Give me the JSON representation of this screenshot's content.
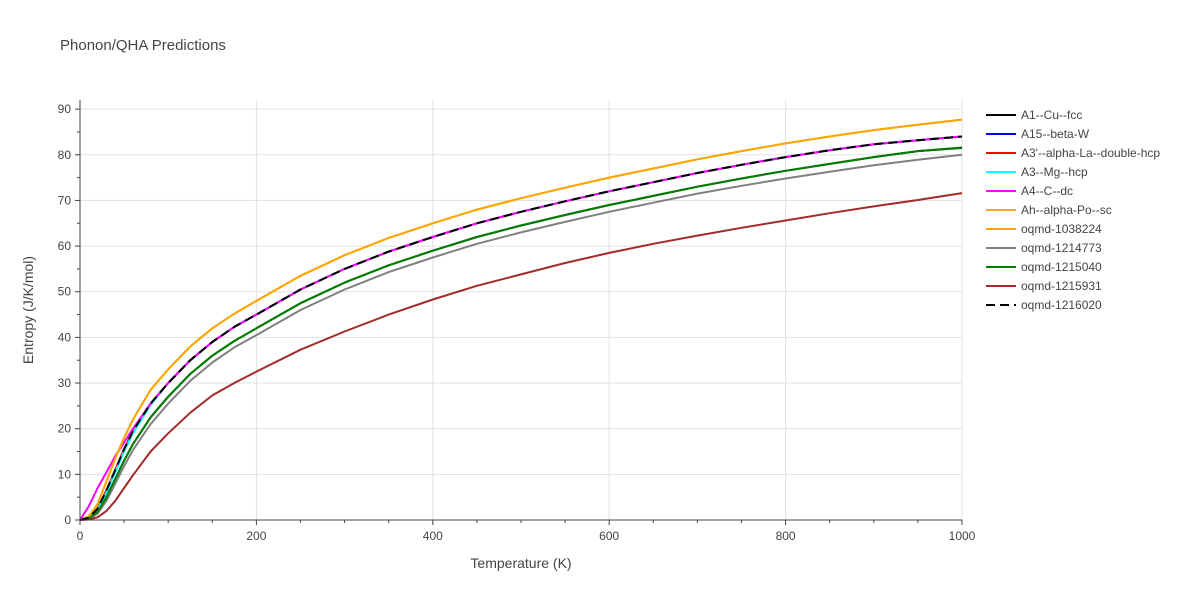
{
  "chart_data": {
    "type": "line",
    "title": "Phonon/QHA Predictions",
    "xlabel": "Temperature (K)",
    "ylabel": "Entropy (J/K/mol)",
    "xlim": [
      0,
      1000
    ],
    "ylim": [
      0,
      92
    ],
    "xticks": [
      0,
      200,
      400,
      600,
      800,
      1000
    ],
    "yticks": [
      0,
      10,
      20,
      30,
      40,
      50,
      60,
      70,
      80,
      90
    ],
    "grid": true,
    "legend_position": "right",
    "x": [
      0,
      10,
      20,
      30,
      40,
      50,
      60,
      80,
      100,
      125,
      150,
      175,
      200,
      250,
      300,
      350,
      400,
      450,
      500,
      550,
      600,
      650,
      700,
      750,
      800,
      850,
      900,
      950,
      1000
    ],
    "series": [
      {
        "name": "A1--Cu--fcc",
        "color": "#000000",
        "dash": "solid",
        "values": [
          0,
          0.3,
          1.8,
          5.0,
          9.0,
          13.0,
          16.6,
          22.5,
          27.0,
          32.0,
          36.0,
          39.2,
          42.0,
          47.5,
          52.0,
          55.8,
          59.0,
          62.0,
          64.5,
          66.8,
          69.0,
          71.0,
          73.0,
          74.8,
          76.5,
          78.0,
          79.5,
          80.8,
          81.5
        ]
      },
      {
        "name": "A15--beta-W",
        "color": "#0000ff",
        "dash": "solid",
        "values": [
          0,
          0.5,
          2.5,
          6.5,
          11.0,
          15.5,
          19.5,
          25.5,
          30.0,
          35.0,
          39.0,
          42.3,
          45.0,
          50.5,
          55.0,
          58.8,
          62.0,
          65.0,
          67.5,
          69.8,
          72.0,
          74.0,
          76.0,
          77.8,
          79.5,
          81.0,
          82.3,
          83.2,
          84.0
        ]
      },
      {
        "name": "A3'--alpha-La--double-hcp",
        "color": "#ff0000",
        "dash": "solid",
        "values": [
          0,
          0.5,
          2.5,
          6.5,
          11.0,
          15.5,
          19.5,
          25.5,
          30.0,
          35.0,
          39.0,
          42.3,
          45.0,
          50.5,
          55.0,
          58.8,
          62.0,
          65.0,
          67.5,
          69.8,
          72.0,
          74.0,
          76.0,
          77.8,
          79.5,
          81.0,
          82.3,
          83.2,
          84.0
        ]
      },
      {
        "name": "A3--Mg--hcp",
        "color": "#00ffff",
        "dash": "solid",
        "values": [
          0,
          0.4,
          2.3,
          6.0,
          10.5,
          15.0,
          19.0,
          25.2,
          30.0,
          35.0,
          39.0,
          42.3,
          45.0,
          50.5,
          55.0,
          58.8,
          62.0,
          65.0,
          67.5,
          69.8,
          72.0,
          74.0,
          76.0,
          77.8,
          79.5,
          81.0,
          82.3,
          83.2,
          84.0
        ]
      },
      {
        "name": "A4--C--dc",
        "color": "#ff00ff",
        "dash": "solid",
        "values": [
          0,
          3.0,
          7.0,
          10.5,
          14.0,
          17.0,
          20.0,
          25.5,
          30.0,
          35.0,
          39.0,
          42.3,
          45.0,
          50.5,
          55.0,
          58.8,
          62.0,
          65.0,
          67.5,
          69.8,
          72.0,
          74.0,
          76.0,
          77.8,
          79.5,
          81.0,
          82.3,
          83.2,
          84.0
        ]
      },
      {
        "name": "Ah--alpha-Po--sc",
        "color": "#f5a623",
        "dash": "solid",
        "values": [
          0,
          0.8,
          3.5,
          8.5,
          13.5,
          18.0,
          22.0,
          28.5,
          33.0,
          38.0,
          42.0,
          45.2,
          48.0,
          53.5,
          58.0,
          61.8,
          65.0,
          68.0,
          70.5,
          72.8,
          75.0,
          77.0,
          79.0,
          80.8,
          82.5,
          84.0,
          85.4,
          86.6,
          87.7
        ]
      },
      {
        "name": "oqmd-1038224",
        "color": "#ffa500",
        "dash": "solid",
        "values": [
          0,
          0.8,
          3.5,
          8.5,
          13.5,
          18.0,
          22.0,
          28.5,
          33.0,
          38.0,
          42.0,
          45.2,
          48.0,
          53.5,
          58.0,
          61.8,
          65.0,
          68.0,
          70.5,
          72.8,
          75.0,
          77.0,
          79.0,
          80.8,
          82.5,
          84.0,
          85.4,
          86.6,
          87.7
        ]
      },
      {
        "name": "oqmd-1214773",
        "color": "#808080",
        "dash": "solid",
        "values": [
          0,
          0.2,
          1.4,
          4.2,
          8.0,
          11.8,
          15.3,
          21.0,
          25.5,
          30.5,
          34.5,
          37.8,
          40.5,
          46.0,
          50.5,
          54.3,
          57.5,
          60.5,
          63.0,
          65.3,
          67.5,
          69.5,
          71.5,
          73.2,
          74.8,
          76.3,
          77.7,
          78.9,
          80.0
        ]
      },
      {
        "name": "oqmd-1215040",
        "color": "#008000",
        "dash": "solid",
        "values": [
          0,
          0.3,
          1.8,
          5.0,
          9.0,
          13.0,
          16.6,
          22.5,
          27.0,
          32.0,
          36.0,
          39.2,
          42.0,
          47.5,
          52.0,
          55.8,
          59.0,
          62.0,
          64.5,
          66.8,
          69.0,
          71.0,
          73.0,
          74.8,
          76.5,
          78.0,
          79.5,
          80.8,
          81.6
        ]
      },
      {
        "name": "oqmd-1215931",
        "color": "#a52a2a",
        "dash": "solid",
        "values": [
          0,
          0.1,
          0.6,
          2.0,
          4.2,
          7.0,
          9.8,
          15.0,
          19.0,
          23.5,
          27.3,
          30.0,
          32.5,
          37.3,
          41.3,
          45.0,
          48.3,
          51.3,
          53.8,
          56.3,
          58.5,
          60.5,
          62.3,
          64.0,
          65.6,
          67.2,
          68.7,
          70.1,
          71.6
        ]
      },
      {
        "name": "oqmd-1216020",
        "color": "#000000",
        "dash": "dash",
        "values": [
          0,
          0.5,
          2.5,
          6.5,
          11.0,
          15.5,
          19.5,
          25.5,
          30.0,
          35.0,
          39.0,
          42.3,
          45.0,
          50.5,
          55.0,
          58.8,
          62.0,
          65.0,
          67.5,
          69.8,
          72.0,
          74.0,
          76.0,
          77.8,
          79.5,
          81.0,
          82.3,
          83.2,
          84.0
        ]
      }
    ]
  }
}
